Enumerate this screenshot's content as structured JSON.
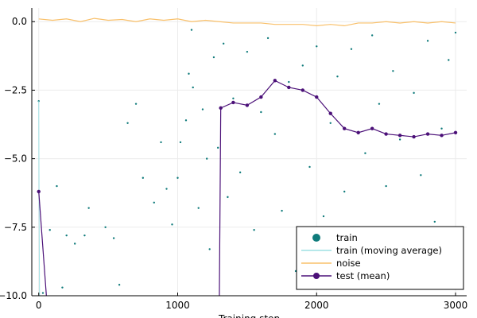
{
  "chart_data": {
    "type": "scatter",
    "title": "",
    "xlabel": "Training step",
    "ylabel": "",
    "xlim": [
      -50,
      3080
    ],
    "ylim": [
      -10.0,
      0.5
    ],
    "x_ticks": [
      0,
      1000,
      2000,
      3000
    ],
    "x_tick_labels": [
      "0",
      "1000",
      "2000",
      "3000"
    ],
    "y_ticks": [
      0.0,
      -2.5,
      -5.0,
      -7.5,
      -10.0
    ],
    "y_tick_labels": [
      "0.0",
      "-2.5",
      "-5.0",
      "-7.5",
      "-10.0"
    ],
    "grid": true,
    "legend_position": "bottom-right",
    "legend": [
      {
        "label": "train",
        "marker": "dot",
        "color": "#0f7b7b"
      },
      {
        "label": "train (moving average)",
        "marker": "line",
        "color": "#9ee0e3"
      },
      {
        "label": "noise",
        "marker": "line",
        "color": "#f9c06a"
      },
      {
        "label": "test (mean)",
        "marker": "line-dot",
        "color": "#4b1078"
      }
    ],
    "series": [
      {
        "name": "train",
        "kind": "scatter",
        "color": "#0f7b7b",
        "x": [
          0,
          30,
          80,
          130,
          170,
          200,
          260,
          330,
          360,
          480,
          540,
          580,
          640,
          700,
          750,
          830,
          880,
          920,
          960,
          1000,
          1020,
          1060,
          1080,
          1100,
          1110,
          1150,
          1180,
          1210,
          1230,
          1260,
          1290,
          1330,
          1360,
          1400,
          1450,
          1500,
          1550,
          1600,
          1650,
          1700,
          1750,
          1800,
          1850,
          1900,
          1950,
          2000,
          2050,
          2100,
          2150,
          2200,
          2250,
          2300,
          2350,
          2400,
          2450,
          2500,
          2550,
          2600,
          2650,
          2700,
          2750,
          2800,
          2850,
          2900,
          2950,
          3000
        ],
        "y": [
          -2.9,
          -9.9,
          -7.6,
          -6.0,
          -9.7,
          -7.8,
          -8.1,
          -7.8,
          -6.8,
          -7.5,
          -7.9,
          -9.6,
          -3.7,
          -3.0,
          -5.7,
          -6.6,
          -4.4,
          -6.1,
          -7.4,
          -5.7,
          -4.4,
          -3.6,
          -1.9,
          -0.3,
          -2.4,
          -6.8,
          -3.2,
          -5.0,
          -8.3,
          -1.3,
          -4.6,
          -0.8,
          -6.4,
          -2.8,
          -5.5,
          -1.1,
          -7.6,
          -3.3,
          -0.6,
          -4.1,
          -6.9,
          -2.2,
          -9.1,
          -1.6,
          -5.3,
          -0.9,
          -7.1,
          -3.7,
          -2.0,
          -6.2,
          -1.0,
          -8.4,
          -4.8,
          -0.5,
          -3.0,
          -6.0,
          -1.8,
          -4.3,
          -9.0,
          -2.6,
          -5.6,
          -0.7,
          -7.3,
          -3.9,
          -1.4,
          -0.4
        ]
      },
      {
        "name": "train (moving average)",
        "kind": "line",
        "color": "#9ee0e3",
        "x": [
          0,
          2,
          4,
          6
        ],
        "y": [
          -2.9,
          -6.2,
          -8.5,
          -10.0
        ]
      },
      {
        "name": "noise",
        "kind": "line",
        "color": "#f9c06a",
        "x": [
          0,
          100,
          200,
          300,
          400,
          500,
          600,
          700,
          800,
          900,
          1000,
          1100,
          1200,
          1300,
          1400,
          1500,
          1600,
          1700,
          1800,
          1900,
          2000,
          2100,
          2200,
          2300,
          2400,
          2500,
          2600,
          2700,
          2800,
          2900,
          3000
        ],
        "y": [
          0.1,
          0.05,
          0.1,
          0.0,
          0.12,
          0.05,
          0.08,
          0.0,
          0.1,
          0.05,
          0.1,
          0.0,
          0.05,
          0.0,
          -0.05,
          -0.05,
          -0.05,
          -0.1,
          -0.1,
          -0.1,
          -0.15,
          -0.1,
          -0.15,
          -0.05,
          -0.05,
          0.0,
          -0.05,
          0.0,
          -0.05,
          0.0,
          -0.05
        ]
      },
      {
        "name": "test (mean)",
        "kind": "line-dot",
        "color": "#4b1078",
        "segments": [
          {
            "x": [
              0,
              55
            ],
            "y": [
              -6.2,
              -10.0
            ]
          },
          {
            "x": [
              1300,
              1310,
              1400,
              1500,
              1600,
              1700,
              1800,
              1900,
              2000,
              2100,
              2200,
              2300,
              2400,
              2500,
              2600,
              2700,
              2800,
              2900,
              3000
            ],
            "y": [
              -10.0,
              -3.15,
              -2.95,
              -3.05,
              -2.75,
              -2.15,
              -2.4,
              -2.5,
              -2.75,
              -3.35,
              -3.9,
              -4.05,
              -3.9,
              -4.1,
              -4.15,
              -4.2,
              -4.1,
              -4.15,
              -4.05
            ]
          }
        ]
      }
    ]
  }
}
